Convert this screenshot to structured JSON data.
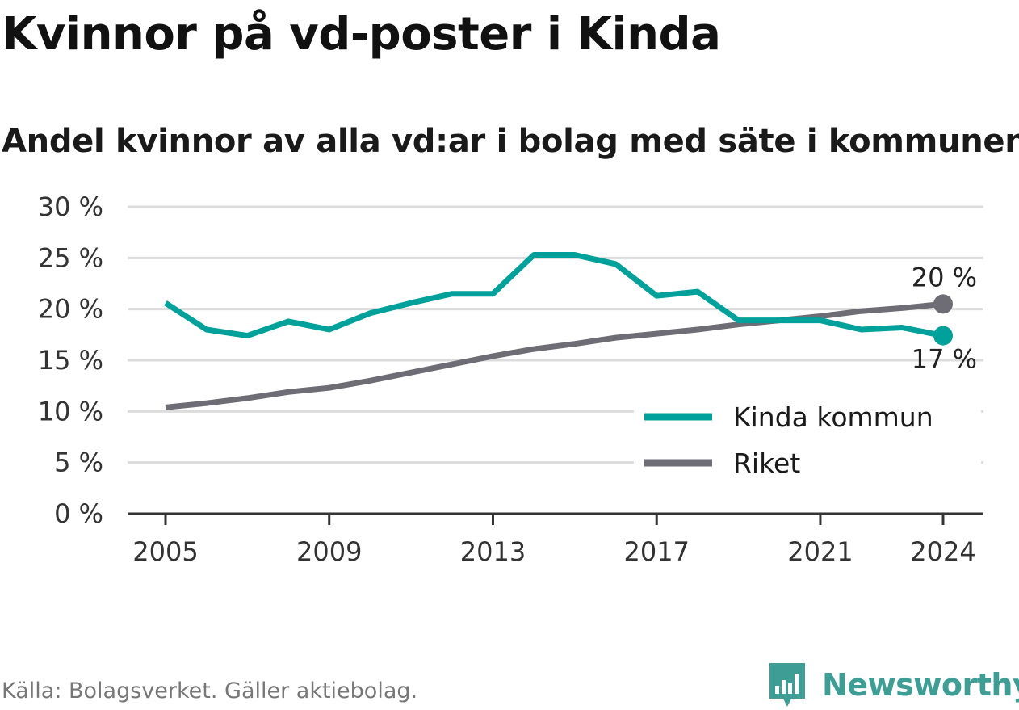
{
  "header": {
    "title": "Kvinnor på vd-poster i Kinda",
    "subtitle": "Andel kvinnor av alla vd:ar i bolag med säte i kommunen"
  },
  "footer": {
    "source": "Källa: Bolagsverket. Gäller aktiebolag.",
    "brand": "Newsworthy"
  },
  "colors": {
    "kinda": "#00a19a",
    "riket": "#6e6d75",
    "grid": "#dcdcdc",
    "axis": "#333333",
    "brand": "#3e9d94"
  },
  "chart_data": {
    "type": "line",
    "x": [
      2005,
      2006,
      2007,
      2008,
      2009,
      2010,
      2011,
      2012,
      2013,
      2014,
      2015,
      2016,
      2017,
      2018,
      2019,
      2020,
      2021,
      2022,
      2023,
      2024
    ],
    "series": [
      {
        "name": "Kinda kommun",
        "color": "#00a19a",
        "values": [
          20.6,
          18.0,
          17.4,
          18.8,
          18.0,
          19.6,
          20.6,
          21.5,
          21.5,
          25.3,
          25.3,
          24.4,
          21.3,
          21.7,
          18.9,
          18.9,
          18.9,
          18.0,
          18.2,
          17.4
        ]
      },
      {
        "name": "Riket",
        "color": "#6e6d75",
        "values": [
          10.4,
          10.8,
          11.3,
          11.9,
          12.3,
          13.0,
          13.8,
          14.6,
          15.4,
          16.1,
          16.6,
          17.2,
          17.6,
          18.0,
          18.5,
          18.9,
          19.3,
          19.8,
          20.1,
          20.5
        ]
      }
    ],
    "end_labels": {
      "Riket": "20 %",
      "Kinda kommun": "17 %"
    },
    "x_ticks": [
      2005,
      2009,
      2013,
      2017,
      2021,
      2024
    ],
    "x_tick_labels": [
      "2005",
      "2009",
      "2013",
      "2017",
      "2021",
      "2024"
    ],
    "y_ticks": [
      0,
      5,
      10,
      15,
      20,
      25,
      30
    ],
    "y_tick_labels": [
      "0 %",
      "5 %",
      "10 %",
      "15 %",
      "20 %",
      "25 %",
      "30 %"
    ],
    "ylim": [
      0,
      30
    ],
    "xlim": [
      2005,
      2024
    ],
    "grid": "horizontal",
    "legend_position": "bottom-right",
    "title": "Kvinnor på vd-poster i Kinda",
    "subtitle": "Andel kvinnor av alla vd:ar i bolag med säte i kommunen",
    "xlabel": "",
    "ylabel": ""
  }
}
